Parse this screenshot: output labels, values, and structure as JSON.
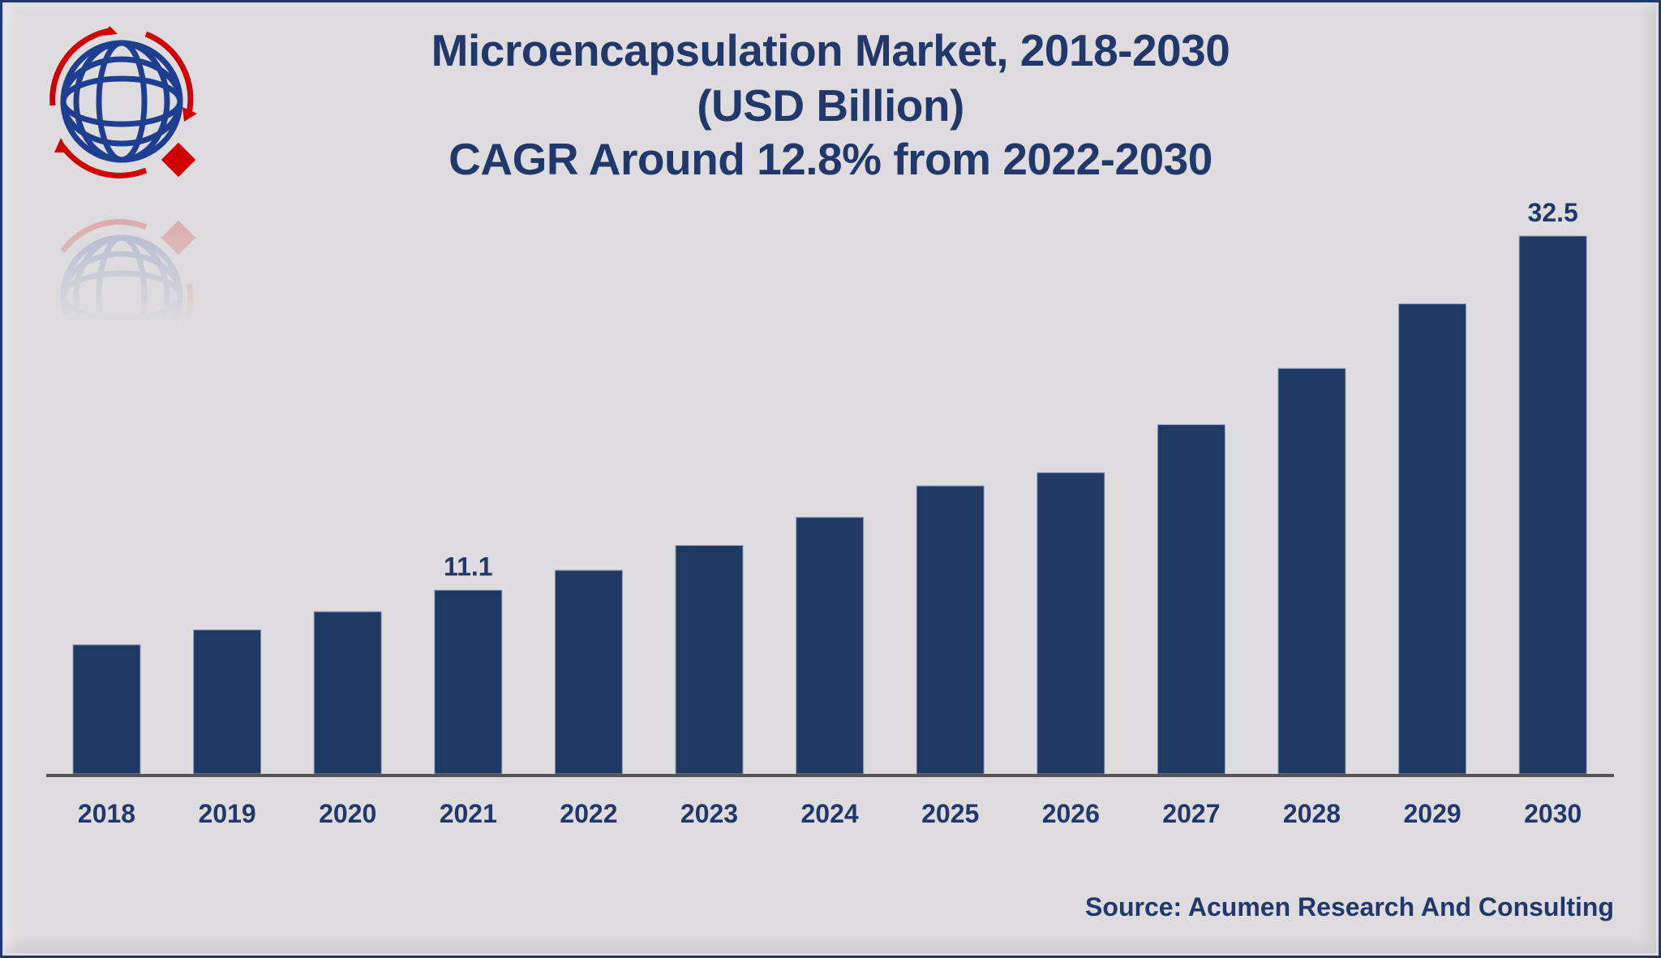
{
  "title": {
    "line1": "Microencapsulation Market, 2018-2030",
    "line2": "(USD Billion)",
    "line3": "CAGR Around 12.8% from 2022-2030"
  },
  "source": "Source: Acumen Research And Consulting",
  "logo": {
    "icon": "globe-arrows-logo-icon",
    "colors": {
      "globe": "#1e3f8f",
      "arrows": "#d00000"
    }
  },
  "colors": {
    "bar": "#203864",
    "background": "#dedcdf",
    "text": "#22386a",
    "axis": "#555555",
    "frame": "#22386a"
  },
  "chart_data": {
    "type": "bar",
    "title": "Microencapsulation Market, 2018-2030 (USD Billion) CAGR Around 12.8% from 2022-2030",
    "xlabel": "",
    "ylabel": "",
    "categories": [
      "2018",
      "2019",
      "2020",
      "2021",
      "2022",
      "2023",
      "2024",
      "2025",
      "2026",
      "2027",
      "2028",
      "2029",
      "2030"
    ],
    "values": [
      7.8,
      8.7,
      9.8,
      11.1,
      12.3,
      13.8,
      15.5,
      17.4,
      18.2,
      21.1,
      24.5,
      28.4,
      32.5
    ],
    "data_labels": {
      "2021": "11.1",
      "2030": "32.5"
    },
    "ylim": [
      0,
      32.5
    ],
    "grid": false,
    "legend": "none"
  }
}
